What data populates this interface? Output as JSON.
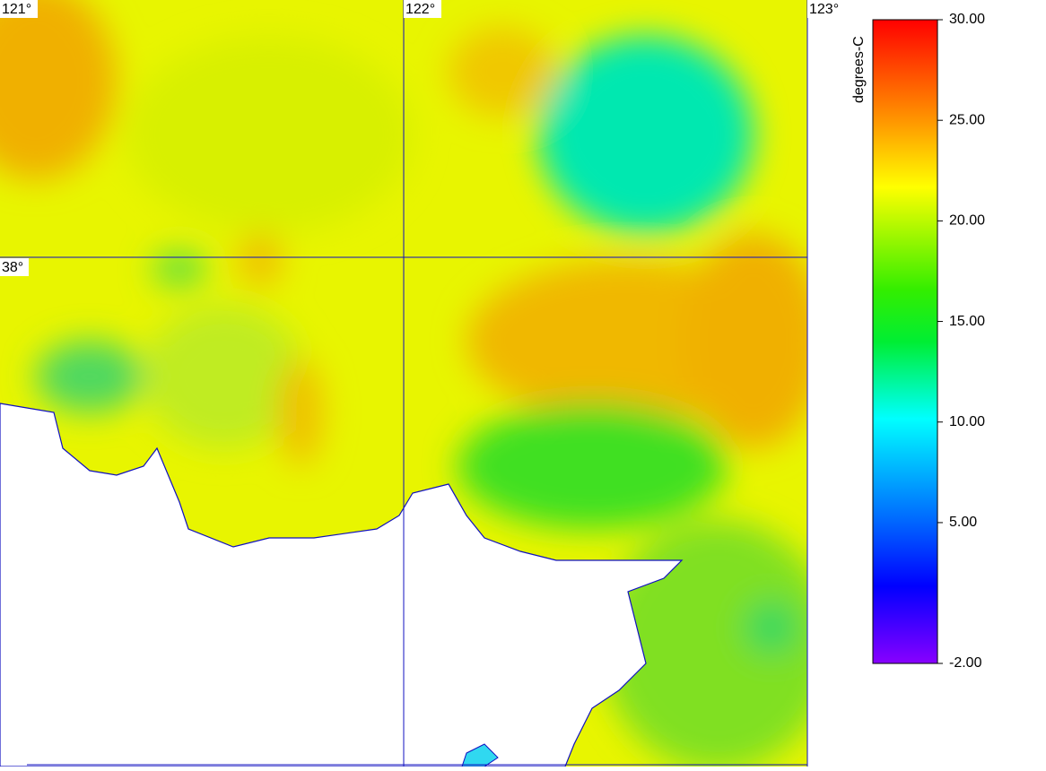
{
  "map": {
    "lon_labels": [
      "121°",
      "122°",
      "123°"
    ],
    "lat_labels": [
      "38°"
    ]
  },
  "colorbar": {
    "unit": "degrees-C",
    "range": [
      -2,
      30
    ],
    "ticks": [
      {
        "value": 30,
        "label": "30.00"
      },
      {
        "value": 25,
        "label": "25.00"
      },
      {
        "value": 20,
        "label": "20.00"
      },
      {
        "value": 15,
        "label": "15.00"
      },
      {
        "value": 10,
        "label": "10.00"
      },
      {
        "value": 5,
        "label": "5.00"
      },
      {
        "value": -2,
        "label": "-2.00"
      }
    ]
  }
}
